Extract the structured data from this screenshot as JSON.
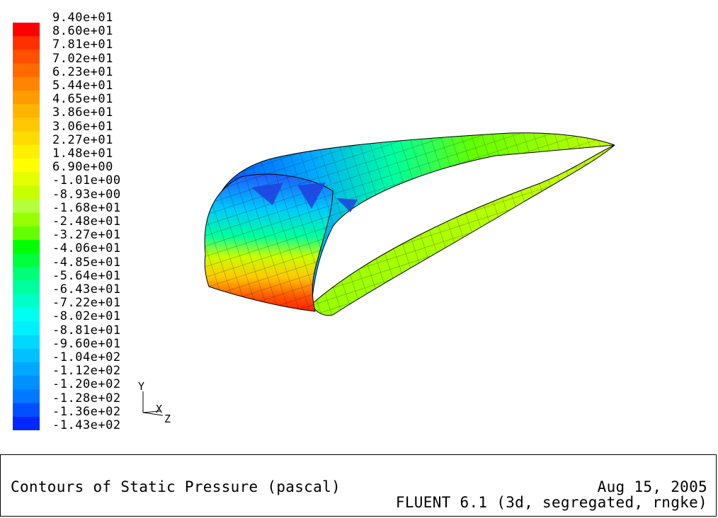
{
  "legend": {
    "labels": [
      "9.40e+01",
      "8.60e+01",
      "7.81e+01",
      "7.02e+01",
      "6.23e+01",
      "5.44e+01",
      "4.65e+01",
      "3.86e+01",
      "3.06e+01",
      "2.27e+01",
      "1.48e+01",
      "6.90e+00",
      "-1.01e+00",
      "-8.93e+00",
      "-1.68e+01",
      "-2.48e+01",
      "-3.27e+01",
      "-4.06e+01",
      "-4.85e+01",
      "-5.64e+01",
      "-6.43e+01",
      "-7.22e+01",
      "-8.02e+01",
      "-8.81e+01",
      "-9.60e+01",
      "-1.04e+02",
      "-1.12e+02",
      "-1.20e+02",
      "-1.28e+02",
      "-1.36e+02",
      "-1.43e+02"
    ],
    "colors": [
      "#ff0000",
      "#ff3000",
      "#ff5000",
      "#ff6a00",
      "#ff8400",
      "#ff9c00",
      "#ffb400",
      "#ffc800",
      "#ffdc00",
      "#fff000",
      "#ffff00",
      "#e4ff00",
      "#c8ff00",
      "#b4ff3c",
      "#96ff00",
      "#64ff00",
      "#00ff00",
      "#00ff3c",
      "#00ff78",
      "#00ffa0",
      "#00ffc8",
      "#00fff0",
      "#00f0ff",
      "#00d8ff",
      "#00c0ff",
      "#00a8ff",
      "#0090ff",
      "#0078ff",
      "#0050ff",
      "#0028ff"
    ]
  },
  "axes": {
    "y": "Y",
    "x": "X",
    "z": "Z"
  },
  "footer": {
    "title": "Contours of Static Pressure (pascal)",
    "date": "Aug 15, 2005",
    "software": "FLUENT 6.1 (3d, segregated, rngke)"
  }
}
